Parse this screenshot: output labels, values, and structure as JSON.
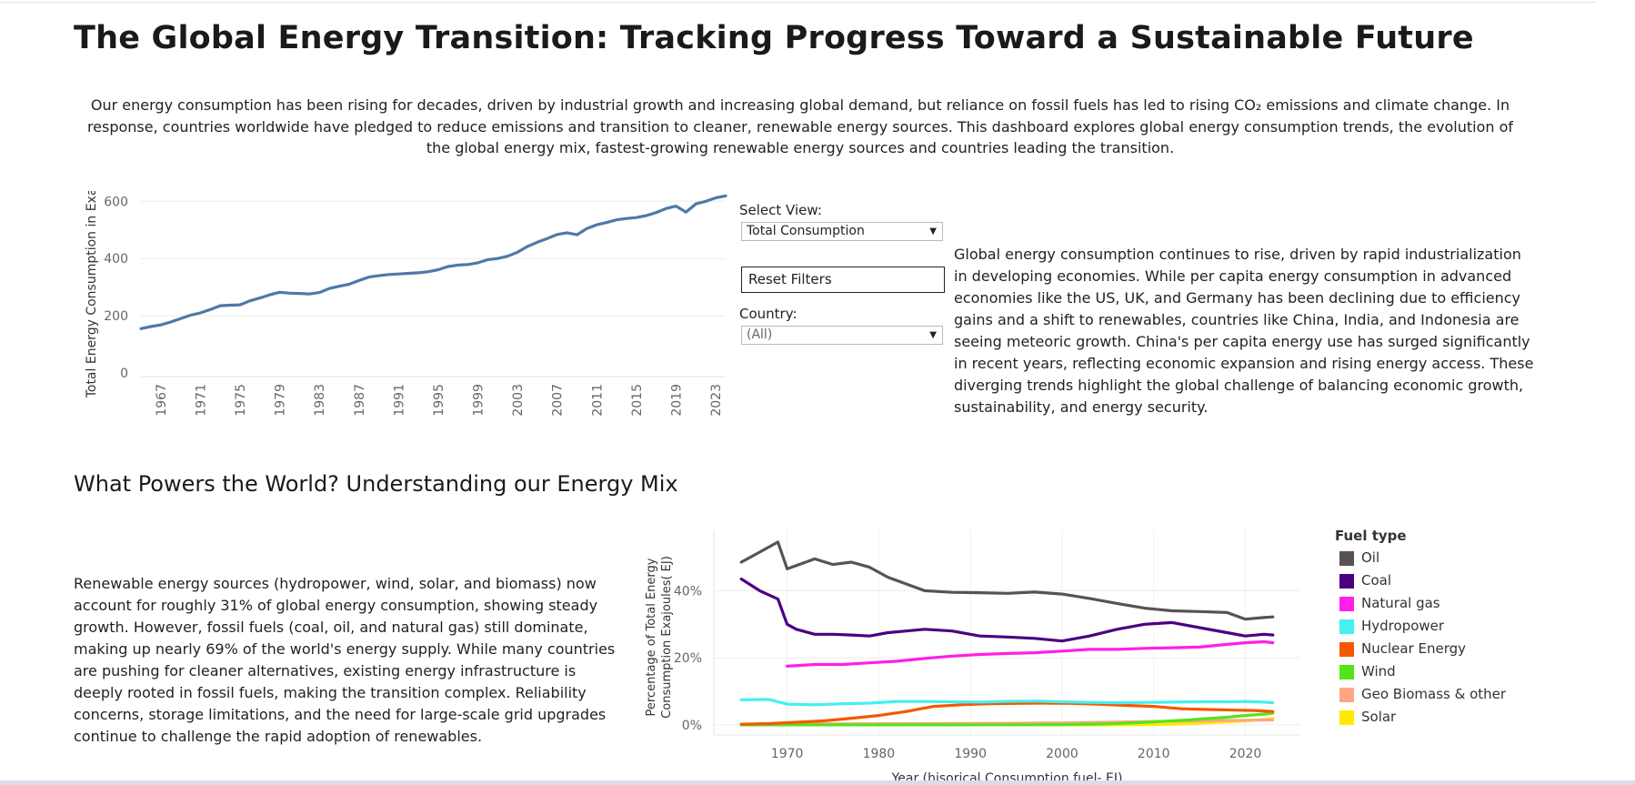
{
  "header": {
    "title": "The Global Energy Transition: Tracking Progress Toward a Sustainable Future",
    "intro": "Our energy consumption has been rising for decades, driven by industrial growth and increasing global demand, but reliance on fossil fuels has led to rising CO₂ emissions and climate change. In response, countries worldwide have pledged to reduce emissions and transition to cleaner, renewable energy sources. This dashboard explores global energy consumption trends, the evolution of the global energy mix, fastest-growing renewable energy sources and countries leading the transition."
  },
  "controls": {
    "view_label": "Select View:",
    "view_value": "Total Consumption",
    "reset_label": "Reset Filters",
    "country_label": "Country:",
    "country_value": "(All)"
  },
  "consumption_text": "Global energy consumption continues to rise, driven by rapid industrialization in developing economies. While per capita energy consumption in advanced economies like the US, UK, and Germany has been declining due to efficiency gains and a shift to renewables, countries like China, India, and Indonesia are seeing meteoric growth. China's per capita energy use has surged significantly in recent years, reflecting economic expansion and rising energy access. These diverging trends highlight the global challenge of balancing economic growth, sustainability, and energy security.",
  "mix_section": {
    "title": "What Powers the World? Understanding our Energy Mix",
    "text": "Renewable energy sources (hydropower, wind, solar, and biomass) now account for roughly 31% of global energy consumption, showing steady growth. However, fossil fuels (coal, oil, and natural gas) still dominate, making up nearly 69% of the world's energy supply. While many countries are pushing for cleaner alternatives, existing energy infrastructure is deeply rooted in fossil fuels, making the transition complex. Reliability concerns, storage limitations, and the need for large-scale grid upgrades continue to challenge the rapid adoption of renewables.",
    "legend_title": "Fuel type"
  },
  "chart_data": [
    {
      "type": "line",
      "title": "",
      "ylabel": "Total Energy Consumption in Exa..",
      "xlabel": "",
      "ylim": [
        0,
        620
      ],
      "yticks": [
        0,
        200,
        400,
        600
      ],
      "xticks": [
        "1967",
        "1971",
        "1975",
        "1979",
        "1983",
        "1987",
        "1991",
        "1995",
        "1999",
        "2003",
        "2007",
        "2011",
        "2015",
        "2019",
        "2023"
      ],
      "color": "#4e79a7",
      "grid": true,
      "series": [
        {
          "x": [
            1965,
            1966,
            1967,
            1968,
            1969,
            1970,
            1971,
            1972,
            1973,
            1974,
            1975,
            1976,
            1977,
            1978,
            1979,
            1980,
            1981,
            1982,
            1983,
            1984,
            1985,
            1986,
            1987,
            1988,
            1989,
            1990,
            1991,
            1992,
            1993,
            1994,
            1995,
            1996,
            1997,
            1998,
            1999,
            2000,
            2001,
            2002,
            2003,
            2004,
            2005,
            2006,
            2007,
            2008,
            2009,
            2010,
            2011,
            2012,
            2013,
            2014,
            2015,
            2016,
            2017,
            2018,
            2019,
            2020,
            2021,
            2022,
            2023,
            2024
          ],
          "y": [
            155,
            162,
            168,
            178,
            190,
            202,
            210,
            222,
            235,
            237,
            238,
            252,
            262,
            273,
            282,
            279,
            278,
            276,
            281,
            295,
            303,
            310,
            323,
            335,
            340,
            344,
            346,
            348,
            350,
            354,
            361,
            372,
            377,
            379,
            385,
            396,
            400,
            408,
            422,
            442,
            457,
            470,
            484,
            490,
            483,
            505,
            518,
            526,
            535,
            540,
            543,
            550,
            561,
            575,
            583,
            562,
            591,
            600,
            612,
            619
          ]
        }
      ]
    },
    {
      "type": "line",
      "title": "",
      "ylabel": "Percentage of Total Energy Consumption Exajoules( EJ)",
      "xlabel": "Year (hisorical Consumption fuel- EJ)",
      "ylim": [
        -3,
        58
      ],
      "yticks": [
        "0%",
        "20%",
        "40%"
      ],
      "xticks": [
        1970,
        1980,
        1990,
        2000,
        2010,
        2020
      ],
      "xlim": [
        1962,
        2026
      ],
      "grid": true,
      "legend": "right",
      "series": [
        {
          "name": "Oil",
          "color": "#5a5251",
          "x": [
            1965,
            1967,
            1969,
            1970,
            1971,
            1973,
            1975,
            1977,
            1979,
            1981,
            1983,
            1985,
            1988,
            1991,
            1994,
            1997,
            2000,
            2003,
            2006,
            2009,
            2012,
            2015,
            2018,
            2020,
            2022,
            2023
          ],
          "y": [
            48.5,
            51.5,
            54.5,
            46.5,
            47.5,
            49.5,
            47.8,
            48.5,
            47.0,
            44.0,
            42.0,
            40.0,
            39.5,
            39.4,
            39.2,
            39.6,
            39.0,
            37.7,
            36.2,
            34.8,
            34.0,
            33.8,
            33.5,
            31.5,
            32.0,
            32.2
          ]
        },
        {
          "name": "Coal",
          "color": "#4b0082",
          "x": [
            1965,
            1967,
            1969,
            1970,
            1971,
            1973,
            1975,
            1977,
            1979,
            1981,
            1983,
            1985,
            1988,
            1991,
            1994,
            1997,
            2000,
            2003,
            2006,
            2009,
            2012,
            2015,
            2018,
            2020,
            2022,
            2023
          ],
          "y": [
            43.5,
            40.0,
            37.5,
            30.0,
            28.5,
            27.0,
            27.0,
            26.8,
            26.5,
            27.5,
            28.0,
            28.5,
            28.0,
            26.5,
            26.2,
            25.8,
            25.0,
            26.5,
            28.5,
            30.0,
            30.5,
            29.0,
            27.5,
            26.5,
            27.0,
            26.8
          ]
        },
        {
          "name": "Natural gas",
          "color": "#ff1fe8",
          "x": [
            1970,
            1973,
            1976,
            1979,
            1982,
            1985,
            1988,
            1991,
            1994,
            1997,
            2000,
            2003,
            2006,
            2009,
            2012,
            2015,
            2018,
            2020,
            2022,
            2023
          ],
          "y": [
            17.5,
            18.0,
            18.0,
            18.5,
            19.0,
            19.8,
            20.5,
            21.0,
            21.3,
            21.5,
            22.0,
            22.5,
            22.5,
            22.8,
            23.0,
            23.2,
            24.0,
            24.5,
            24.8,
            24.5
          ]
        },
        {
          "name": "Hydropower",
          "color": "#46f0f0",
          "x": [
            1965,
            1968,
            1970,
            1973,
            1976,
            1979,
            1982,
            1985,
            1988,
            1991,
            1994,
            1997,
            2000,
            2003,
            2006,
            2009,
            2012,
            2015,
            2018,
            2020,
            2022,
            2023
          ],
          "y": [
            7.5,
            7.6,
            6.2,
            6.0,
            6.3,
            6.5,
            7.0,
            7.0,
            6.9,
            6.8,
            7.0,
            7.1,
            6.9,
            6.7,
            6.6,
            6.7,
            6.8,
            6.9,
            6.9,
            7.0,
            6.8,
            6.6
          ]
        },
        {
          "name": "Nuclear Energy",
          "color": "#f55800",
          "x": [
            1965,
            1968,
            1971,
            1974,
            1977,
            1980,
            1983,
            1986,
            1989,
            1992,
            1995,
            1998,
            2001,
            2004,
            2007,
            2010,
            2013,
            2016,
            2019,
            2021,
            2023
          ],
          "y": [
            0.2,
            0.4,
            0.8,
            1.2,
            2.0,
            2.8,
            4.0,
            5.5,
            6.0,
            6.3,
            6.4,
            6.5,
            6.4,
            6.2,
            5.8,
            5.5,
            4.8,
            4.6,
            4.4,
            4.3,
            4.0
          ]
        },
        {
          "name": "Wind",
          "color": "#55e41a",
          "x": [
            1965,
            1975,
            1985,
            1995,
            2000,
            2005,
            2008,
            2010,
            2012,
            2014,
            2016,
            2018,
            2020,
            2022,
            2023
          ],
          "y": [
            0,
            0,
            0,
            0.05,
            0.1,
            0.3,
            0.6,
            0.9,
            1.2,
            1.5,
            1.9,
            2.3,
            2.8,
            3.2,
            3.5
          ]
        },
        {
          "name": "Geo Biomass & other",
          "color": "#ffa585",
          "x": [
            1965,
            1975,
            1985,
            1995,
            2000,
            2005,
            2010,
            2015,
            2020,
            2023
          ],
          "y": [
            0.2,
            0.3,
            0.4,
            0.5,
            0.6,
            0.8,
            1.0,
            1.2,
            1.4,
            1.5
          ]
        },
        {
          "name": "Solar",
          "color": "#ffea00",
          "x": [
            1965,
            2000,
            2005,
            2010,
            2012,
            2014,
            2016,
            2018,
            2020,
            2022,
            2023
          ],
          "y": [
            0,
            0,
            0,
            0.1,
            0.2,
            0.4,
            0.6,
            0.9,
            1.2,
            1.6,
            1.9
          ]
        }
      ]
    }
  ]
}
